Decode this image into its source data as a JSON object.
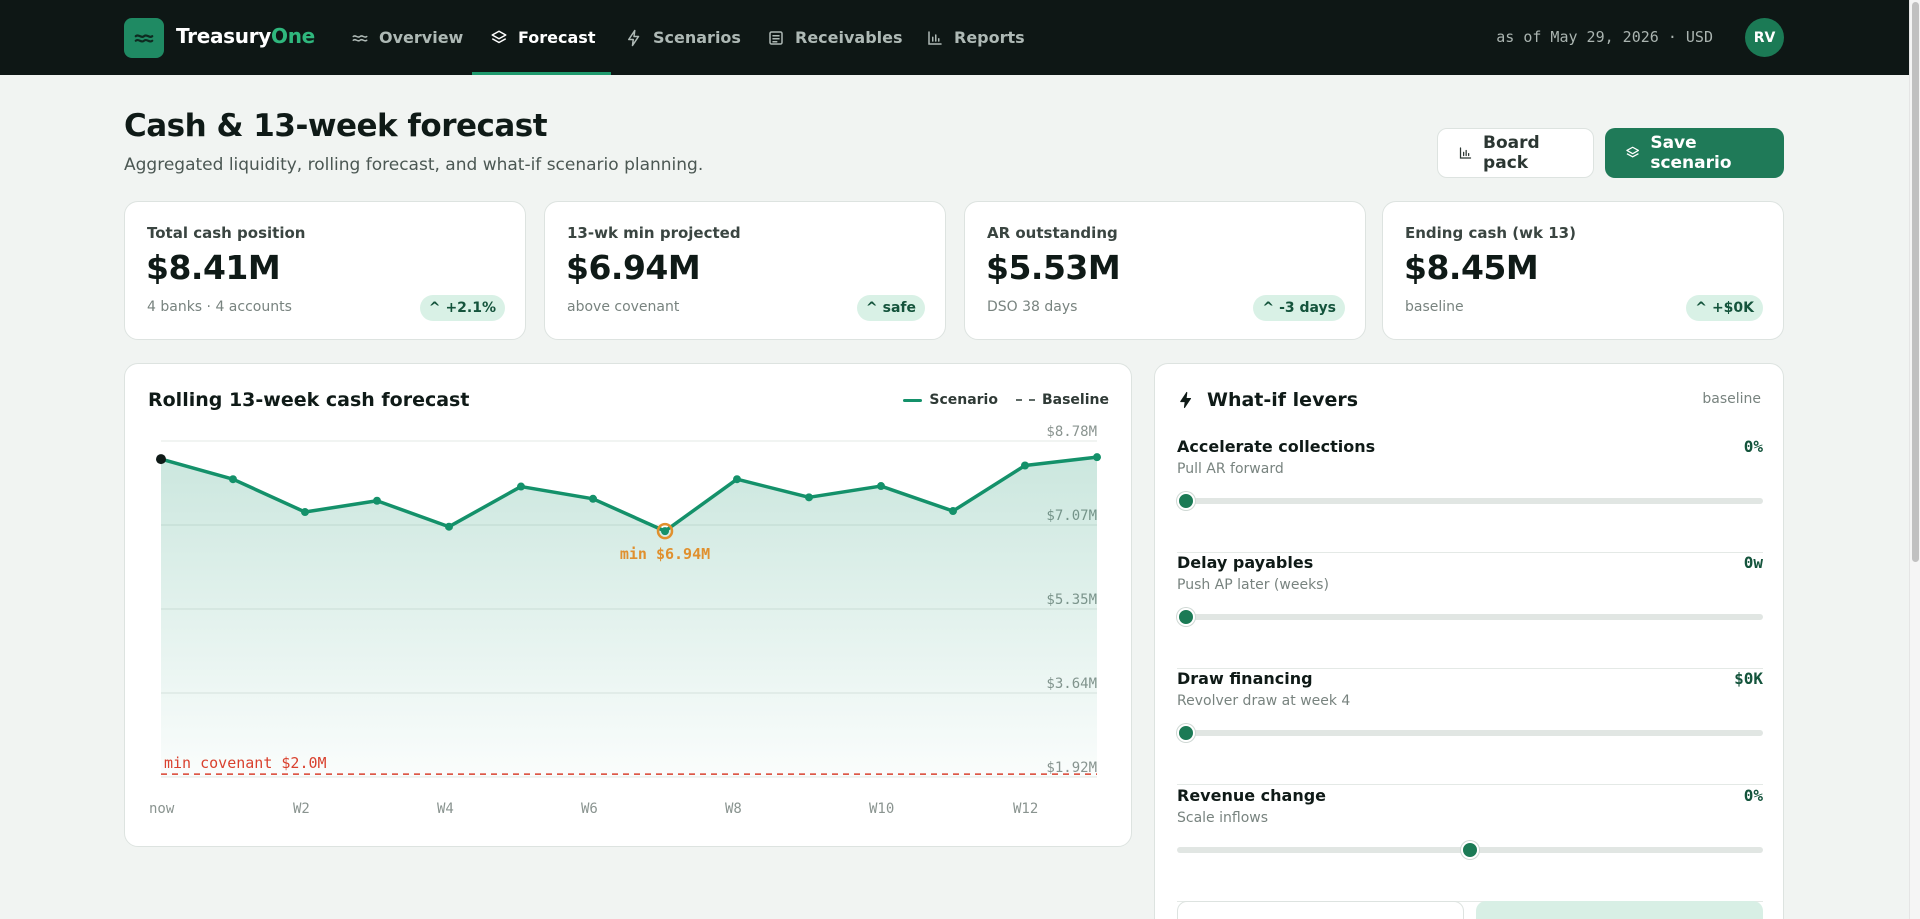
{
  "app": {
    "brand_main": "Treasury",
    "brand_accent": "One",
    "as_of": "as of May 29, 2026 · USD",
    "avatar_initials": "RV"
  },
  "nav": [
    {
      "label": "Overview",
      "icon": "wave-icon",
      "active": false
    },
    {
      "label": "Forecast",
      "icon": "layers-icon",
      "active": true
    },
    {
      "label": "Scenarios",
      "icon": "bolt-icon",
      "active": false
    },
    {
      "label": "Receivables",
      "icon": "receipt-icon",
      "active": false
    },
    {
      "label": "Reports",
      "icon": "bar-chart-icon",
      "active": false
    }
  ],
  "header": {
    "title": "Cash & 13-week forecast",
    "subtitle": "Aggregated liquidity, rolling forecast, and what-if scenario planning.",
    "board_pack_label": "Board pack",
    "save_scenario_label": "Save scenario"
  },
  "kpis": [
    {
      "label": "Total cash position",
      "value": "$8.41M",
      "note": "4 banks · 4 accounts",
      "badge": "+2.1%"
    },
    {
      "label": "13-wk min projected",
      "value": "$6.94M",
      "note": "above covenant",
      "badge": "safe"
    },
    {
      "label": "AR outstanding",
      "value": "$5.53M",
      "note": "DSO 38 days",
      "badge": "-3 days"
    },
    {
      "label": "Ending cash (wk 13)",
      "value": "$8.45M",
      "note": "baseline",
      "badge": "+$0K"
    }
  ],
  "chart": {
    "title": "Rolling 13-week cash forecast",
    "legend_scenario": "Scenario",
    "legend_baseline": "Baseline",
    "min_label": "min $6.94M",
    "covenant_label": "min covenant $2.0M"
  },
  "chart_data": {
    "type": "area",
    "title": "Rolling 13-week cash forecast",
    "x": [
      "now",
      "W1",
      "W2",
      "W3",
      "W4",
      "W5",
      "W6",
      "W7",
      "W8",
      "W9",
      "W10",
      "W11",
      "W12",
      "W13"
    ],
    "x_tick_labels": [
      "now",
      "W2",
      "W4",
      "W6",
      "W8",
      "W10",
      "W12"
    ],
    "y_tick_labels": [
      "$8.78M",
      "$7.07M",
      "$5.35M",
      "$3.64M",
      "$1.92M"
    ],
    "ylim": [
      1.92,
      8.78
    ],
    "y_unit": "$M",
    "series": [
      {
        "name": "Scenario",
        "values": [
          8.41,
          8.0,
          7.33,
          7.56,
          7.03,
          7.85,
          7.6,
          6.94,
          8.0,
          7.63,
          7.86,
          7.35,
          8.28,
          8.45
        ]
      }
    ],
    "covenant": 2.0,
    "min_point": {
      "x": "W7",
      "value": 6.94
    },
    "grid": true,
    "legend_position": "top-right"
  },
  "levers": {
    "title": "What-if levers",
    "tag": "baseline",
    "items": [
      {
        "name": "Accelerate collections",
        "desc": "Pull AR forward",
        "value": "0%",
        "fraction": 0.0
      },
      {
        "name": "Delay payables",
        "desc": "Push AP later (weeks)",
        "value": "0w",
        "fraction": 0.0
      },
      {
        "name": "Draw financing",
        "desc": "Revolver draw at week 4",
        "value": "$0K",
        "fraction": 0.0
      },
      {
        "name": "Revenue change",
        "desc": "Scale inflows",
        "value": "0%",
        "fraction": 0.5
      }
    ]
  },
  "colors": {
    "accent": "#1f7a58",
    "line": "#14916a",
    "min_marker": "#e0902e",
    "covenant": "#d9412e"
  }
}
